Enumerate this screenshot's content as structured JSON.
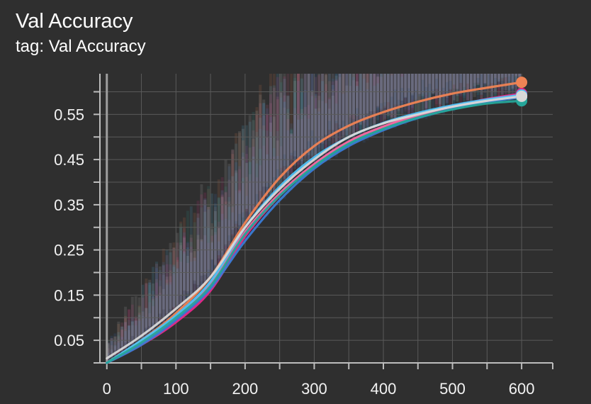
{
  "card": {
    "title": "Val Accuracy",
    "subtitle": "tag: Val Accuracy"
  },
  "chart_data": {
    "type": "line",
    "title": "Val Accuracy",
    "xlabel": "",
    "ylabel": "",
    "xlim": [
      -10,
      645
    ],
    "ylim": [
      0.0,
      0.64
    ],
    "xticks": [
      0,
      100,
      200,
      300,
      400,
      500,
      600
    ],
    "yticks": [
      0.05,
      0.15,
      0.25,
      0.35,
      0.45,
      0.55
    ],
    "grid": true,
    "legend": "none",
    "colors": {
      "background": "#2f2f2f",
      "grid": "#5a5a5a",
      "axis": "#bdbdbd",
      "text": "#f2f2f2"
    },
    "series": [
      {
        "color": "#ef8354",
        "x": [
          0,
          50,
          100,
          150,
          200,
          250,
          300,
          350,
          400,
          450,
          500,
          550,
          600
        ],
        "y": [
          0.0,
          0.05,
          0.11,
          0.19,
          0.31,
          0.41,
          0.48,
          0.525,
          0.555,
          0.578,
          0.596,
          0.609,
          0.621
        ]
      },
      {
        "color": "#e7298a",
        "x": [
          0,
          50,
          100,
          150,
          200,
          250,
          300,
          350,
          400,
          450,
          500,
          550,
          600
        ],
        "y": [
          0.0,
          0.04,
          0.09,
          0.16,
          0.28,
          0.37,
          0.44,
          0.49,
          0.523,
          0.549,
          0.568,
          0.584,
          0.596
        ]
      },
      {
        "color": "#f06ba0",
        "x": [
          0,
          50,
          100,
          150,
          200,
          250,
          300,
          350,
          400,
          450,
          500,
          550,
          600
        ],
        "y": [
          0.0,
          0.045,
          0.1,
          0.175,
          0.29,
          0.375,
          0.44,
          0.49,
          0.523,
          0.548,
          0.567,
          0.582,
          0.592
        ]
      },
      {
        "color": "#4fc3f7",
        "x": [
          0,
          50,
          100,
          150,
          200,
          250,
          300,
          350,
          400,
          450,
          500,
          550,
          600
        ],
        "y": [
          0.0,
          0.05,
          0.105,
          0.18,
          0.3,
          0.39,
          0.455,
          0.5,
          0.531,
          0.553,
          0.57,
          0.583,
          0.593
        ]
      },
      {
        "color": "#3a7bd5",
        "x": [
          0,
          50,
          100,
          150,
          200,
          250,
          300,
          350,
          400,
          450,
          500,
          550,
          600
        ],
        "y": [
          0.0,
          0.04,
          0.095,
          0.165,
          0.27,
          0.36,
          0.43,
          0.48,
          0.515,
          0.542,
          0.562,
          0.577,
          0.588
        ]
      },
      {
        "color": "#26a69a",
        "x": [
          0,
          50,
          100,
          150,
          200,
          250,
          300,
          350,
          400,
          450,
          500,
          550,
          600
        ],
        "y": [
          0.0,
          0.045,
          0.1,
          0.17,
          0.285,
          0.37,
          0.435,
          0.485,
          0.518,
          0.543,
          0.561,
          0.574,
          0.58
        ]
      },
      {
        "color": "#d8d8d8",
        "x": [
          0,
          50,
          100,
          150,
          200,
          250,
          300,
          350,
          400,
          450,
          500,
          550,
          600
        ],
        "y": [
          0.01,
          0.06,
          0.12,
          0.19,
          0.3,
          0.385,
          0.45,
          0.5,
          0.53,
          0.55,
          0.567,
          0.58,
          0.59
        ]
      }
    ]
  }
}
